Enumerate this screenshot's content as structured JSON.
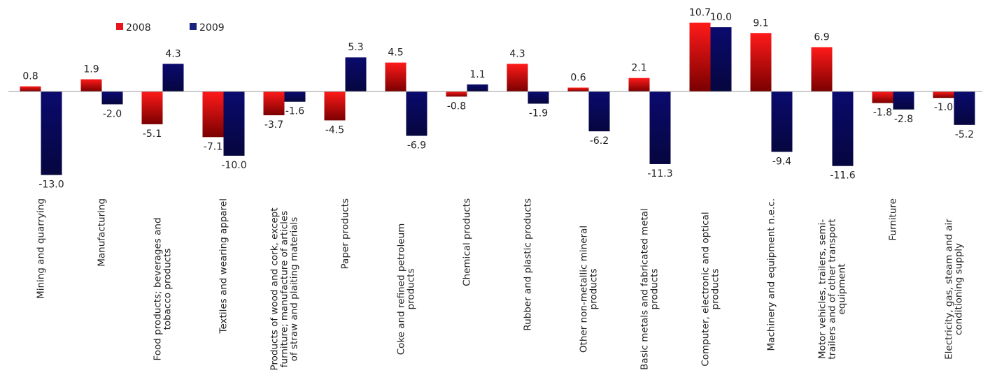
{
  "chart_data": {
    "type": "bar",
    "title": "",
    "xlabel": "",
    "ylabel": "",
    "legend_position": "top-left",
    "grid": false,
    "categories": [
      [
        "Mining and quarrying"
      ],
      [
        "Manufacturing"
      ],
      [
        "Food products; beverages and",
        "tobacco products"
      ],
      [
        "Textiles and wearing apparel"
      ],
      [
        "Products of wood and cork, except",
        "furniture; manufacture of articles",
        "of straw and plaiting materials"
      ],
      [
        "Paper products"
      ],
      [
        "Coke and refined petroleum",
        "products"
      ],
      [
        "Chemical products"
      ],
      [
        "Rubber and plastic products"
      ],
      [
        "Other non-metallic mineral",
        "products"
      ],
      [
        "Basic metals and fabricated metal",
        "products"
      ],
      [
        "Computer, electronic and optical",
        "products"
      ],
      [
        "Machinery and equipment n.e.c."
      ],
      [
        "Motor vehicles, trailers, semi-",
        "trailers and of other transport",
        "equipment"
      ],
      [
        "Furniture"
      ],
      [
        "Electricity, gas, steam and air",
        "conditioning supply"
      ]
    ],
    "series": [
      {
        "name": "2008",
        "color": "#e8161b",
        "values": [
          0.8,
          1.9,
          -5.1,
          -7.1,
          -3.7,
          -4.5,
          4.5,
          -0.8,
          4.3,
          0.6,
          2.1,
          10.7,
          9.1,
          6.9,
          -1.8,
          -1.0
        ]
      },
      {
        "name": "2009",
        "color": "#1a2380",
        "values": [
          -13.0,
          -2.0,
          4.3,
          -10.0,
          -1.6,
          5.3,
          -6.9,
          1.1,
          -1.9,
          -6.2,
          -11.3,
          10.0,
          -9.4,
          -11.6,
          -2.8,
          -5.2
        ]
      }
    ],
    "ylim": [
      -13.5,
      10.7
    ]
  }
}
